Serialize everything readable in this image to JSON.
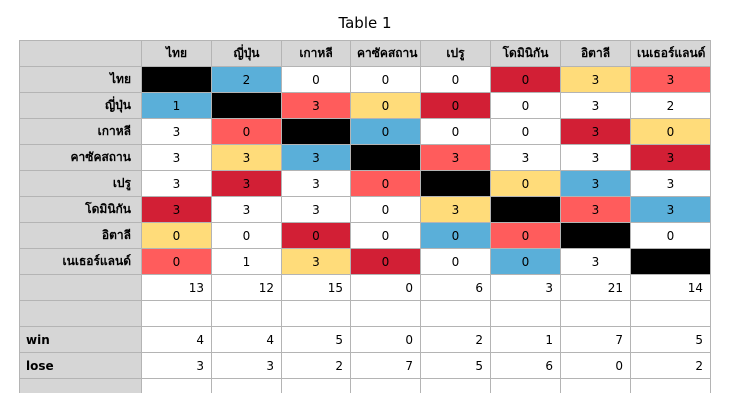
{
  "title": "Table 1",
  "colors": {
    "black": "#000000",
    "blue": "#5aafd9",
    "red": "#d21f35",
    "pink": "#ff5c5c",
    "yellow": "#ffdc7a",
    "white": "#ffffff",
    "header": "#d6d6d6"
  },
  "columns": [
    "",
    "ไทย",
    "ญี่ปุ่น",
    "เกาหลี",
    "คาซัคสถาน",
    "เปรู",
    "โดมินิกัน",
    "อิตาลี",
    "เนเธอร์แลนด์"
  ],
  "rows": [
    {
      "label": "ไทย",
      "cells": [
        {
          "v": "",
          "c": "black"
        },
        {
          "v": "2",
          "c": "blue"
        },
        {
          "v": "0",
          "c": "white"
        },
        {
          "v": "0",
          "c": "white"
        },
        {
          "v": "0",
          "c": "white"
        },
        {
          "v": "0",
          "c": "red"
        },
        {
          "v": "3",
          "c": "yellow"
        },
        {
          "v": "3",
          "c": "pink"
        }
      ]
    },
    {
      "label": "ญี่ปุ่น",
      "cells": [
        {
          "v": "1",
          "c": "blue"
        },
        {
          "v": "",
          "c": "black"
        },
        {
          "v": "3",
          "c": "pink"
        },
        {
          "v": "0",
          "c": "yellow"
        },
        {
          "v": "0",
          "c": "red"
        },
        {
          "v": "0",
          "c": "white"
        },
        {
          "v": "3",
          "c": "white"
        },
        {
          "v": "2",
          "c": "white"
        }
      ]
    },
    {
      "label": "เกาหลี",
      "cells": [
        {
          "v": "3",
          "c": "white"
        },
        {
          "v": "0",
          "c": "pink"
        },
        {
          "v": "",
          "c": "black"
        },
        {
          "v": "0",
          "c": "blue"
        },
        {
          "v": "0",
          "c": "white"
        },
        {
          "v": "0",
          "c": "white"
        },
        {
          "v": "3",
          "c": "red"
        },
        {
          "v": "0",
          "c": "yellow"
        }
      ]
    },
    {
      "label": "คาซัคสถาน",
      "cells": [
        {
          "v": "3",
          "c": "white"
        },
        {
          "v": "3",
          "c": "yellow"
        },
        {
          "v": "3",
          "c": "blue"
        },
        {
          "v": "",
          "c": "black"
        },
        {
          "v": "3",
          "c": "pink"
        },
        {
          "v": "3",
          "c": "white"
        },
        {
          "v": "3",
          "c": "white"
        },
        {
          "v": "3",
          "c": "red"
        }
      ]
    },
    {
      "label": "เปรู",
      "cells": [
        {
          "v": "3",
          "c": "white"
        },
        {
          "v": "3",
          "c": "red"
        },
        {
          "v": "3",
          "c": "white"
        },
        {
          "v": "0",
          "c": "pink"
        },
        {
          "v": "",
          "c": "black"
        },
        {
          "v": "0",
          "c": "yellow"
        },
        {
          "v": "3",
          "c": "blue"
        },
        {
          "v": "3",
          "c": "white"
        }
      ]
    },
    {
      "label": "โดมินิกัน",
      "cells": [
        {
          "v": "3",
          "c": "red"
        },
        {
          "v": "3",
          "c": "white"
        },
        {
          "v": "3",
          "c": "white"
        },
        {
          "v": "0",
          "c": "white"
        },
        {
          "v": "3",
          "c": "yellow"
        },
        {
          "v": "",
          "c": "black"
        },
        {
          "v": "3",
          "c": "pink"
        },
        {
          "v": "3",
          "c": "blue"
        }
      ]
    },
    {
      "label": "อิตาลี",
      "cells": [
        {
          "v": "0",
          "c": "yellow"
        },
        {
          "v": "0",
          "c": "white"
        },
        {
          "v": "0",
          "c": "red"
        },
        {
          "v": "0",
          "c": "white"
        },
        {
          "v": "0",
          "c": "blue"
        },
        {
          "v": "0",
          "c": "pink"
        },
        {
          "v": "",
          "c": "black"
        },
        {
          "v": "0",
          "c": "white"
        }
      ]
    },
    {
      "label": "เนเธอร์แลนด์",
      "cells": [
        {
          "v": "0",
          "c": "pink"
        },
        {
          "v": "1",
          "c": "white"
        },
        {
          "v": "3",
          "c": "yellow"
        },
        {
          "v": "0",
          "c": "red"
        },
        {
          "v": "0",
          "c": "white"
        },
        {
          "v": "0",
          "c": "blue"
        },
        {
          "v": "3",
          "c": "white"
        },
        {
          "v": "",
          "c": "black"
        }
      ]
    }
  ],
  "totals": [
    "13",
    "12",
    "15",
    "0",
    "6",
    "3",
    "21",
    "14"
  ],
  "win": {
    "label": "win",
    "values": [
      "4",
      "4",
      "5",
      "0",
      "2",
      "1",
      "7",
      "5"
    ]
  },
  "lose": {
    "label": "lose",
    "values": [
      "3",
      "3",
      "2",
      "7",
      "5",
      "6",
      "0",
      "2"
    ]
  }
}
